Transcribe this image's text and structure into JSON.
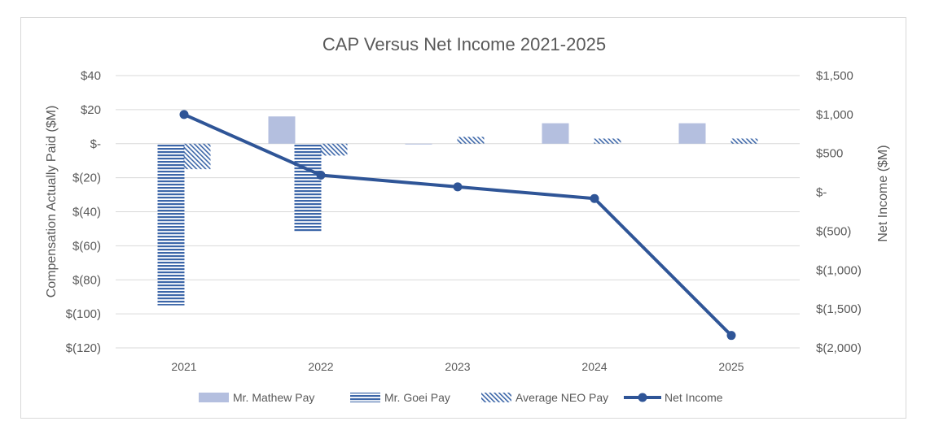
{
  "chart_data": {
    "type": "bar",
    "title": "CAP Versus Net Income 2021-2025",
    "categories": [
      "2021",
      "2022",
      "2023",
      "2024",
      "2025"
    ],
    "ylabel": "Compensation Actually Paid ($M)",
    "y2label": "Net Income ($M)",
    "ylim": [
      -120,
      40
    ],
    "y2lim": [
      -2000,
      1500
    ],
    "yticks": [
      {
        "value": 40,
        "label": "$40"
      },
      {
        "value": 20,
        "label": "$20"
      },
      {
        "value": 0,
        "label": "$-"
      },
      {
        "value": -20,
        "label": "$(20)"
      },
      {
        "value": -40,
        "label": "$(40)"
      },
      {
        "value": -60,
        "label": "$(60)"
      },
      {
        "value": -80,
        "label": "$(80)"
      },
      {
        "value": -100,
        "label": "$(100)"
      },
      {
        "value": -120,
        "label": "$(120)"
      }
    ],
    "y2ticks": [
      {
        "value": 1500,
        "label": "$1,500"
      },
      {
        "value": 1000,
        "label": "$1,000"
      },
      {
        "value": 500,
        "label": "$500"
      },
      {
        "value": 0,
        "label": "$-"
      },
      {
        "value": -500,
        "label": "$(500)"
      },
      {
        "value": -1000,
        "label": "$(1,000)"
      },
      {
        "value": -1500,
        "label": "$(1,500)"
      },
      {
        "value": -2000,
        "label": "$(2,000)"
      }
    ],
    "grid": true,
    "legend_position": "bottom",
    "series": [
      {
        "name": "Mr. Mathew Pay",
        "kind": "bar",
        "axis": "left",
        "pattern": "solid",
        "color": "#b4bfdf",
        "values": [
          null,
          16,
          0,
          12,
          12
        ]
      },
      {
        "name": "Mr. Goei Pay",
        "kind": "bar",
        "axis": "left",
        "pattern": "horizontal-stripes",
        "color": "#3c66a8",
        "values": [
          -95,
          -52,
          null,
          null,
          null
        ]
      },
      {
        "name": "Average NEO Pay",
        "kind": "bar",
        "axis": "left",
        "pattern": "diagonal-hatch",
        "color": "#3c66a8",
        "values": [
          -15,
          -7,
          4,
          3,
          3
        ]
      },
      {
        "name": "Net Income",
        "kind": "line",
        "axis": "right",
        "color": "#2f5597",
        "values": [
          1000,
          220,
          70,
          -80,
          -1840
        ]
      }
    ]
  }
}
